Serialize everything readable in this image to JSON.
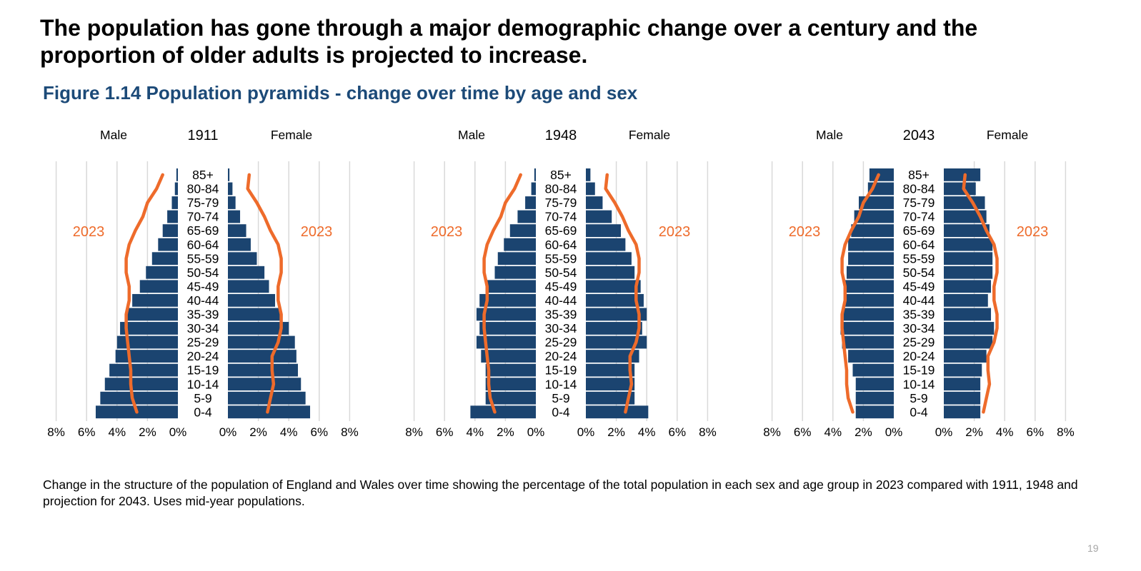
{
  "headline": "The population has gone through a major demographic change over a century and the proportion of older adults is projected to increase.",
  "figure_title": "Figure 1.14 Population pyramids - change over time by age and sex",
  "caption": "Change in the structure of the population of England and Wales over time showing the percentage of the total population in each sex and age group in 2023 compared with 1911, 1948 and projection for 2043. Uses mid-year populations.",
  "page_number": "19",
  "colors": {
    "bar": "#1b4470",
    "line": "#ee6b2b",
    "grid": "#d9d9d9",
    "title": "#1c4a78"
  },
  "chart_data": [
    {
      "type": "population-pyramid",
      "title": "1911",
      "male_label": "Male",
      "female_label": "Female",
      "line_label": "2023",
      "age_groups": [
        "85+",
        "80-84",
        "75-79",
        "70-74",
        "65-69",
        "60-64",
        "55-59",
        "50-54",
        "45-49",
        "40-44",
        "35-39",
        "30-34",
        "25-29",
        "20-24",
        "15-19",
        "10-14",
        "5-9",
        "0-4"
      ],
      "x_ticks": [
        "8%",
        "6%",
        "4%",
        "2%",
        "0%"
      ],
      "x_ticks_female": [
        "0%",
        "2%",
        "4%",
        "6%",
        "8%"
      ],
      "xlim": [
        0,
        8
      ],
      "male": [
        0.1,
        0.2,
        0.4,
        0.7,
        1.0,
        1.3,
        1.7,
        2.1,
        2.5,
        3.0,
        3.4,
        3.8,
        4.0,
        4.1,
        4.5,
        4.8,
        5.1,
        5.4
      ],
      "female": [
        0.1,
        0.3,
        0.5,
        0.8,
        1.2,
        1.5,
        1.9,
        2.4,
        2.7,
        3.1,
        3.5,
        4.0,
        4.4,
        4.5,
        4.6,
        4.8,
        5.1,
        5.4
      ],
      "male_2023": [
        1.0,
        1.4,
        2.0,
        2.3,
        2.8,
        3.2,
        3.4,
        3.4,
        3.2,
        3.2,
        3.4,
        3.4,
        3.3,
        3.2,
        3.1,
        3.1,
        3.0,
        2.7
      ],
      "female_2023": [
        1.4,
        1.3,
        1.9,
        2.4,
        2.8,
        3.3,
        3.5,
        3.5,
        3.3,
        3.3,
        3.5,
        3.5,
        3.3,
        2.9,
        2.9,
        3.0,
        2.8,
        2.6
      ]
    },
    {
      "type": "population-pyramid",
      "title": "1948",
      "male_label": "Male",
      "female_label": "Female",
      "line_label": "2023",
      "age_groups": [
        "85+",
        "80-84",
        "75-79",
        "70-74",
        "65-69",
        "60-64",
        "55-59",
        "50-54",
        "45-49",
        "40-44",
        "35-39",
        "30-34",
        "25-29",
        "20-24",
        "15-19",
        "10-14",
        "5-9",
        "0-4"
      ],
      "x_ticks": [
        "8%",
        "6%",
        "4%",
        "2%",
        "0%"
      ],
      "x_ticks_female": [
        "0%",
        "2%",
        "4%",
        "6%",
        "8%"
      ],
      "xlim": [
        0,
        8
      ],
      "male": [
        0.1,
        0.3,
        0.7,
        1.2,
        1.7,
        2.1,
        2.5,
        2.7,
        3.3,
        3.7,
        3.9,
        3.7,
        3.9,
        3.6,
        3.3,
        3.3,
        3.3,
        4.3
      ],
      "female": [
        0.3,
        0.6,
        1.1,
        1.7,
        2.3,
        2.6,
        3.0,
        3.2,
        3.6,
        3.8,
        4.0,
        3.7,
        4.0,
        3.5,
        3.2,
        3.2,
        3.2,
        4.1
      ],
      "male_2023": [
        1.0,
        1.4,
        2.0,
        2.3,
        2.8,
        3.2,
        3.4,
        3.4,
        3.2,
        3.2,
        3.4,
        3.4,
        3.3,
        3.2,
        3.1,
        3.1,
        3.0,
        2.7
      ],
      "female_2023": [
        1.4,
        1.3,
        1.9,
        2.4,
        2.8,
        3.3,
        3.5,
        3.5,
        3.3,
        3.3,
        3.5,
        3.5,
        3.3,
        2.9,
        2.9,
        3.0,
        2.8,
        2.6
      ]
    },
    {
      "type": "population-pyramid",
      "title": "2043",
      "male_label": "Male",
      "female_label": "Female",
      "line_label": "2023",
      "age_groups": [
        "85+",
        "80-84",
        "75-79",
        "70-74",
        "65-69",
        "60-64",
        "55-59",
        "50-54",
        "45-49",
        "40-44",
        "35-39",
        "30-34",
        "25-29",
        "20-24",
        "15-19",
        "10-14",
        "5-9",
        "0-4"
      ],
      "x_ticks": [
        "8%",
        "6%",
        "4%",
        "2%",
        "0%"
      ],
      "x_ticks_female": [
        "0%",
        "2%",
        "4%",
        "6%",
        "8%"
      ],
      "xlim": [
        0,
        8
      ],
      "male": [
        1.6,
        1.7,
        2.3,
        2.6,
        2.8,
        3.0,
        3.0,
        3.1,
        3.2,
        3.2,
        3.3,
        3.5,
        3.4,
        3.0,
        2.7,
        2.5,
        2.5,
        2.5
      ],
      "female": [
        2.4,
        2.1,
        2.7,
        2.8,
        3.0,
        3.2,
        3.2,
        3.2,
        3.1,
        2.9,
        3.1,
        3.3,
        3.2,
        2.8,
        2.5,
        2.4,
        2.4,
        2.4
      ],
      "male_2023": [
        1.0,
        1.4,
        2.0,
        2.3,
        2.8,
        3.2,
        3.4,
        3.4,
        3.2,
        3.2,
        3.4,
        3.4,
        3.3,
        3.2,
        3.1,
        3.1,
        3.0,
        2.7
      ],
      "female_2023": [
        1.4,
        1.3,
        1.9,
        2.4,
        2.8,
        3.3,
        3.5,
        3.5,
        3.3,
        3.3,
        3.5,
        3.5,
        3.3,
        2.9,
        2.9,
        3.0,
        2.8,
        2.6
      ]
    }
  ]
}
